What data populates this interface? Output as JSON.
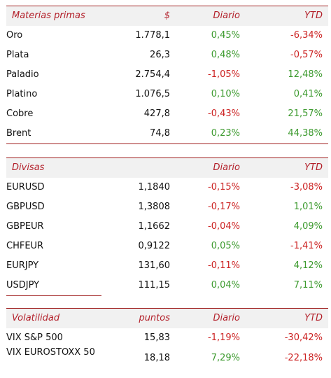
{
  "materias": {
    "header": {
      "label": "Materias primas",
      "col1": "$",
      "col2": "Diario",
      "col3": "YTD"
    },
    "rows": [
      {
        "name": "Oro",
        "value": "1.778,1",
        "daily": "0,45%",
        "ytd": "-6,34%"
      },
      {
        "name": "Plata",
        "value": "26,3",
        "daily": "0,48%",
        "ytd": "-0,57%"
      },
      {
        "name": "Paladio",
        "value": "2.754,4",
        "daily": "-1,05%",
        "ytd": "12,48%"
      },
      {
        "name": "Platino",
        "value": "1.076,5",
        "daily": "0,10%",
        "ytd": "0,41%"
      },
      {
        "name": "Cobre",
        "value": "427,8",
        "daily": "-0,43%",
        "ytd": "21,57%"
      },
      {
        "name": "Brent",
        "value": "74,8",
        "daily": "0,23%",
        "ytd": "44,38%"
      }
    ]
  },
  "divisas": {
    "header": {
      "label": "Divisas",
      "col1": "",
      "col2": "Diario",
      "col3": "YTD"
    },
    "rows": [
      {
        "name": "EURUSD",
        "value": "1,1840",
        "daily": "-0,15%",
        "ytd": "-3,08%"
      },
      {
        "name": "GBPUSD",
        "value": "1,3808",
        "daily": "-0,17%",
        "ytd": "1,01%"
      },
      {
        "name": "GBPEUR",
        "value": "1,1662",
        "daily": "-0,04%",
        "ytd": "4,09%"
      },
      {
        "name": "CHFEUR",
        "value": "0,9122",
        "daily": "0,05%",
        "ytd": "-1,41%"
      },
      {
        "name": "EURJPY",
        "value": "131,60",
        "daily": "-0,11%",
        "ytd": "4,12%"
      },
      {
        "name": "USDJPY",
        "value": "111,15",
        "daily": "0,04%",
        "ytd": "7,11%"
      }
    ]
  },
  "volatilidad": {
    "header": {
      "label": "Volatilidad",
      "col1": "puntos",
      "col2": "Diario",
      "col3": "YTD"
    },
    "rows": [
      {
        "name": "VIX S&P 500",
        "value": "15,83",
        "daily": "-1,19%",
        "ytd": "-30,42%"
      },
      {
        "name": "VIX EUROSTOXX 50",
        "value": "18,18",
        "daily": "7,29%",
        "ytd": "-22,18%"
      }
    ]
  },
  "colors": {
    "accent": "#b3202a",
    "positive": "#3c9a2e",
    "negative": "#cc2222",
    "header_bg": "#f1f1f1"
  }
}
